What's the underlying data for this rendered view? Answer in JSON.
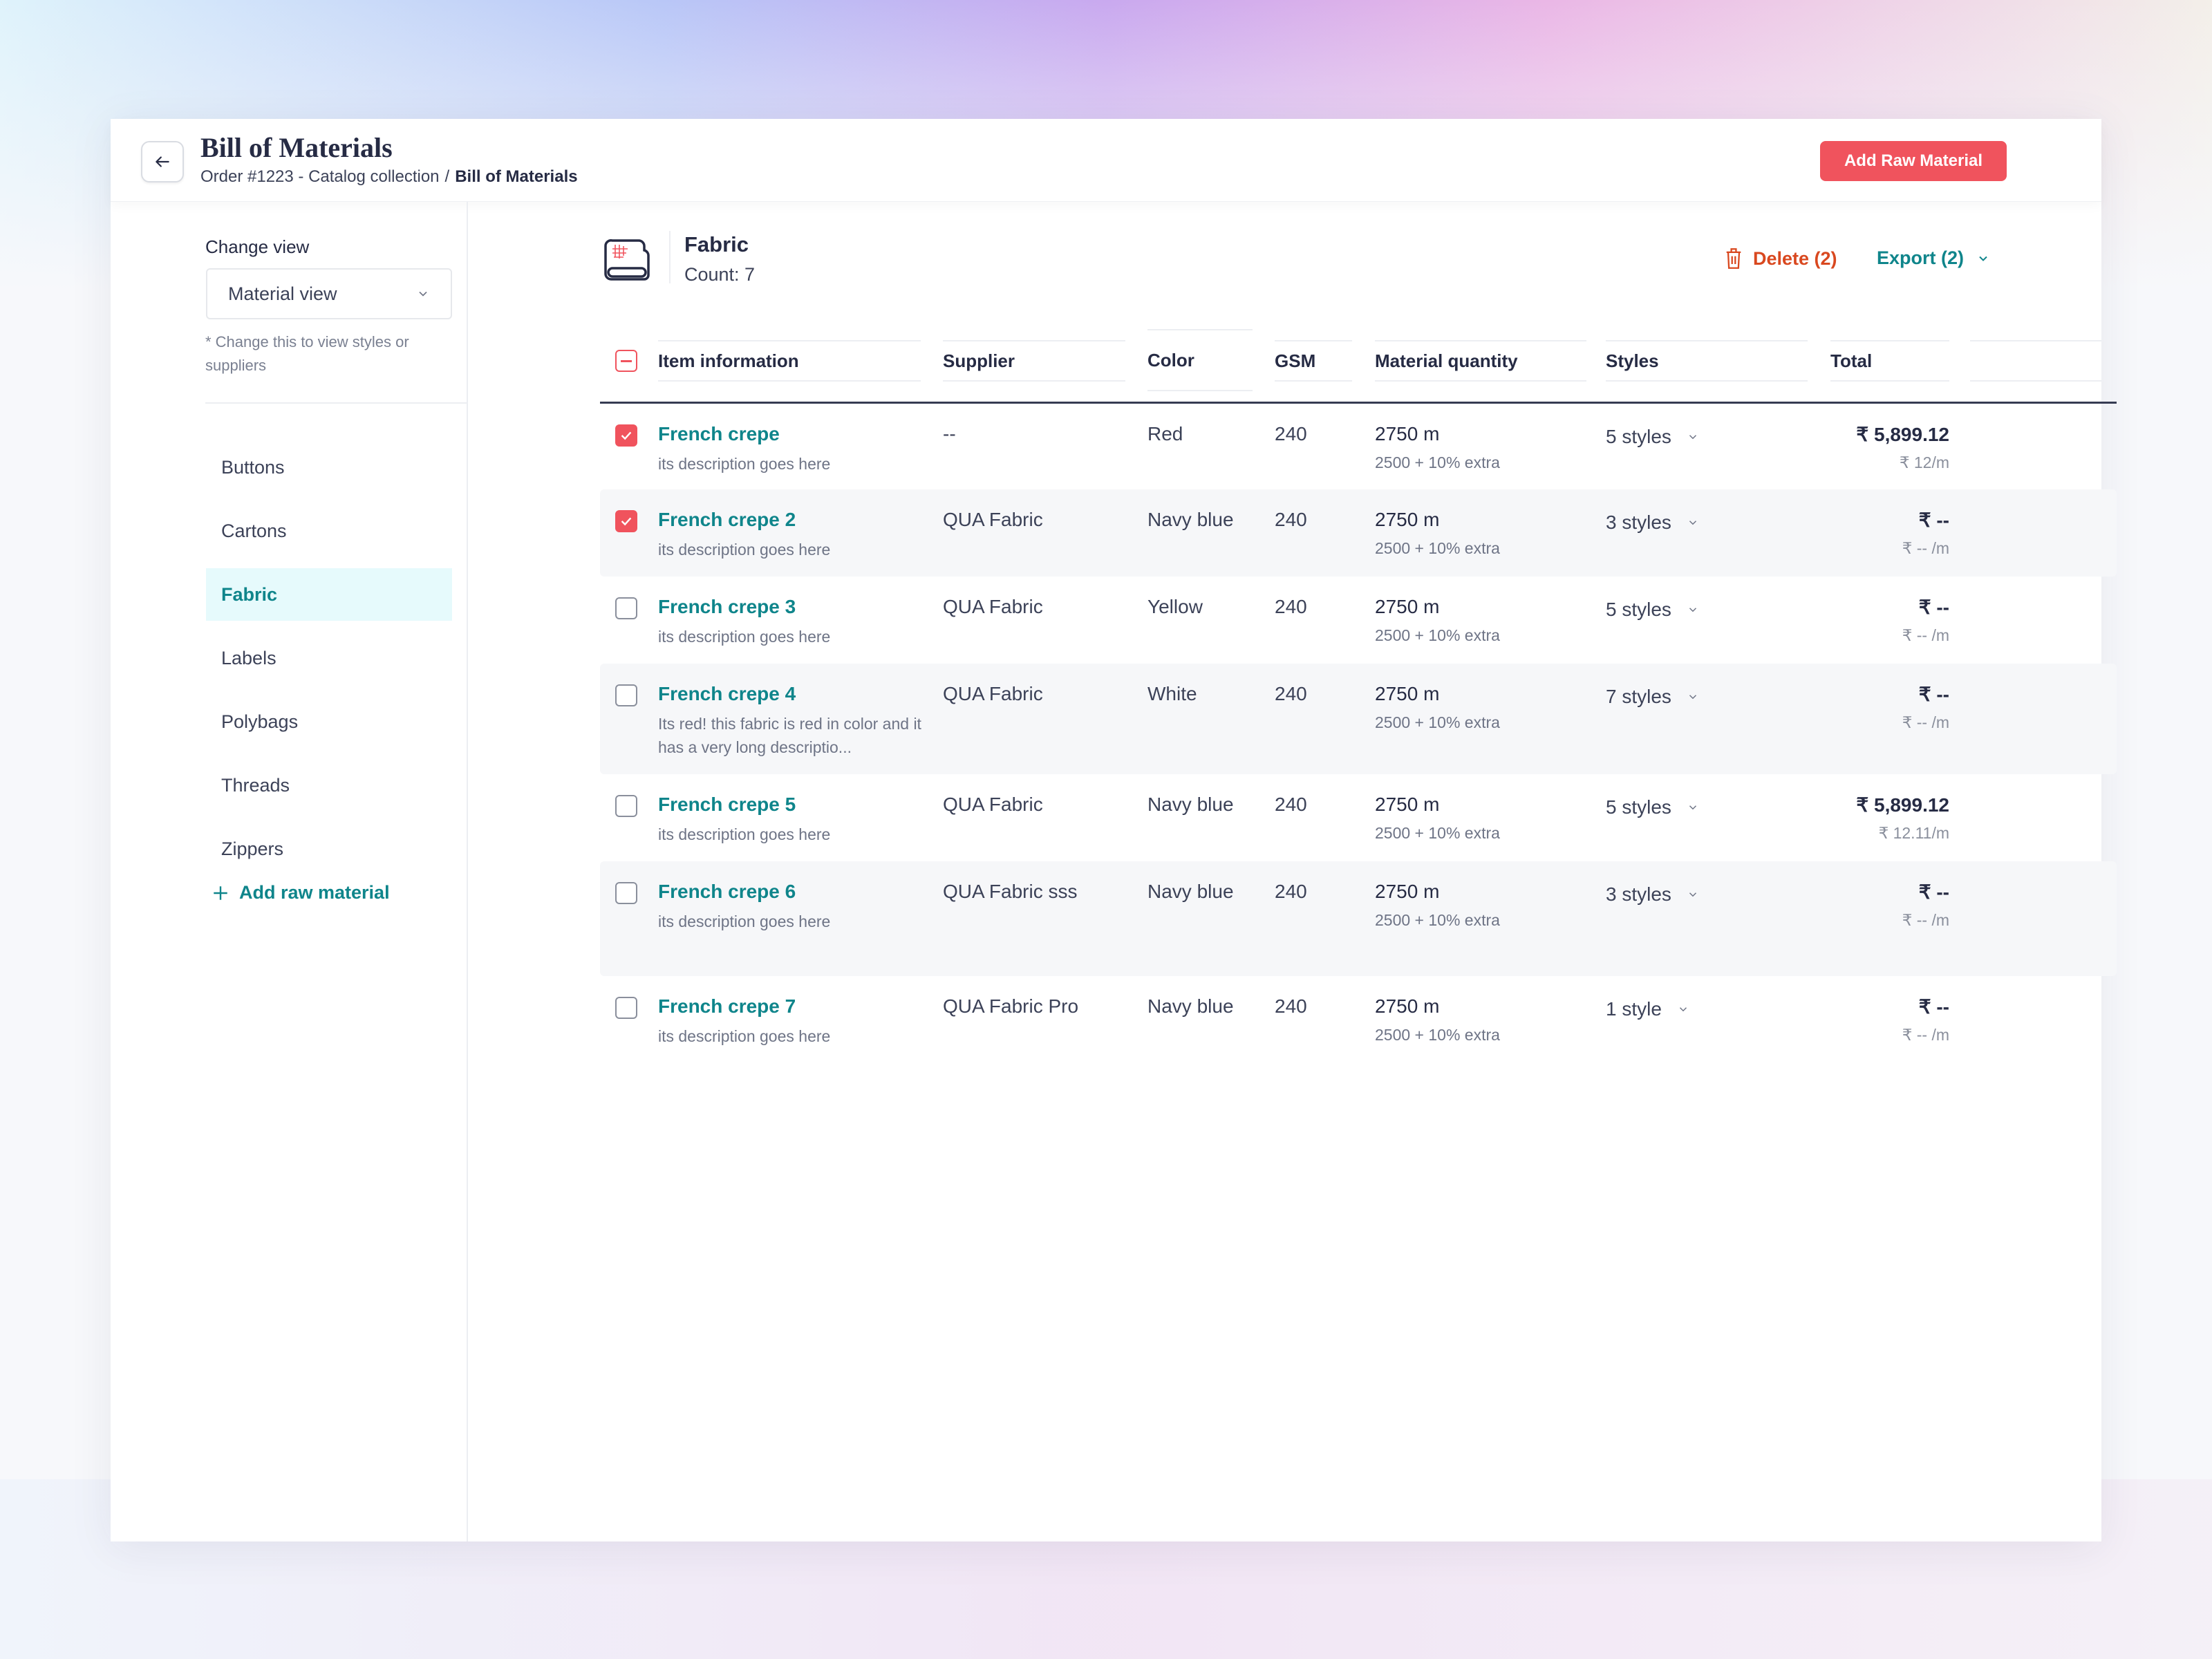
{
  "header": {
    "title": "Bill of Materials",
    "breadcrumb": [
      "Order #1223 - Catalog collection",
      "Bill of Materials"
    ],
    "separator": "/",
    "add_button": "Add Raw Material"
  },
  "sidebar": {
    "change_view_label": "Change view",
    "select_value": "Material view",
    "hint": "* Change this to view styles or suppliers",
    "items": [
      {
        "label": "Buttons"
      },
      {
        "label": "Cartons"
      },
      {
        "label": "Fabric",
        "active": true
      },
      {
        "label": "Labels"
      },
      {
        "label": "Polybags"
      },
      {
        "label": "Threads"
      },
      {
        "label": "Zippers"
      }
    ],
    "add_label": "Add raw material"
  },
  "main": {
    "title": "Fabric",
    "count": "Count: 7",
    "delete_label": "Delete (2)",
    "export_label": "Export (2)"
  },
  "table": {
    "columns": [
      "Item information",
      "Supplier",
      "Color",
      "GSM",
      "Material quantity",
      "Styles",
      "Total"
    ],
    "rows": [
      {
        "checked": true,
        "name": "French crepe",
        "desc": "its description goes here",
        "supplier": "--",
        "color": "Red",
        "gsm": "240",
        "qty": "2750 m",
        "qty_sub": "2500 + 10% extra",
        "styles": "5 styles",
        "total": "₹ 5,899.12",
        "per": "₹ 12/m"
      },
      {
        "checked": true,
        "name": "French crepe 2",
        "desc": "its description goes here",
        "supplier": "QUA Fabric",
        "color": "Navy blue",
        "gsm": "240",
        "qty": "2750 m",
        "qty_sub": "2500 + 10% extra",
        "styles": "3 styles",
        "total": "₹ --",
        "per": "₹ -- /m"
      },
      {
        "checked": false,
        "name": "French crepe 3",
        "desc": "its description goes here",
        "supplier": "QUA Fabric",
        "color": "Yellow",
        "gsm": "240",
        "qty": "2750 m",
        "qty_sub": "2500 + 10% extra",
        "styles": "5 styles",
        "total": "₹ --",
        "per": "₹ -- /m"
      },
      {
        "checked": false,
        "name": "French crepe 4",
        "desc": "Its red! this fabric is red in color and it has a very long descriptio...",
        "supplier": "QUA Fabric",
        "color": "White",
        "gsm": "240",
        "qty": "2750 m",
        "qty_sub": "2500 + 10% extra",
        "styles": "7 styles",
        "total": "₹ --",
        "per": "₹ -- /m"
      },
      {
        "checked": false,
        "name": "French crepe 5",
        "desc": "its description goes here",
        "supplier": "QUA Fabric",
        "color": "Navy blue",
        "gsm": "240",
        "qty": "2750 m",
        "qty_sub": "2500 + 10% extra",
        "styles": "5 styles",
        "total": "₹ 5,899.12",
        "per": "₹ 12.11/m"
      },
      {
        "checked": false,
        "name": "French crepe 6",
        "desc": "its description goes here",
        "supplier": "QUA Fabric sss",
        "color": "Navy blue",
        "gsm": "240",
        "qty": "2750 m",
        "qty_sub": "2500 + 10% extra",
        "styles": "3 styles",
        "total": "₹ --",
        "per": "₹ -- /m"
      },
      {
        "checked": false,
        "name": "French crepe 7",
        "desc": "its description goes here",
        "supplier": "QUA Fabric Pro",
        "color": "Navy blue",
        "gsm": "240",
        "qty": "2750 m",
        "qty_sub": "2500 + 10% extra",
        "styles": "1 style",
        "total": "₹ --",
        "per": "₹ -- /m"
      }
    ]
  },
  "colors": {
    "accent": "#0f858b",
    "primary": "#f0535d",
    "danger": "#d9481f",
    "text": "#262b44"
  }
}
